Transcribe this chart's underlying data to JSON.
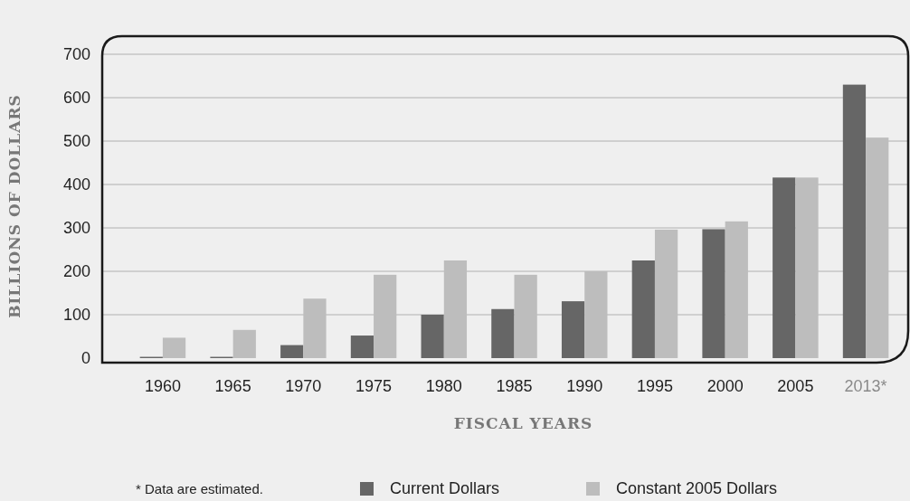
{
  "chart_data": {
    "type": "bar",
    "xlabel": "FISCAL YEARS",
    "ylabel": "BILLIONS OF DOLLARS",
    "categories": [
      "1960",
      "1965",
      "1970",
      "1975",
      "1980",
      "1985",
      "1990",
      "1995",
      "2000",
      "2005",
      "2013*"
    ],
    "series": [
      {
        "name": "Current Dollars",
        "color": "#666666",
        "values": [
          3,
          3,
          30,
          52,
          100,
          113,
          131,
          225,
          297,
          416,
          630
        ]
      },
      {
        "name": "Constant 2005 Dollars",
        "color": "#bdbdbd",
        "values": [
          47,
          65,
          137,
          192,
          225,
          192,
          200,
          296,
          315,
          416,
          508
        ]
      }
    ],
    "ylim": [
      0,
      700
    ],
    "yticks": [
      0,
      100,
      200,
      300,
      400,
      500,
      600,
      700
    ],
    "grid": "y",
    "legend": "bottom",
    "annotations": [
      "* Data are estimated."
    ]
  }
}
